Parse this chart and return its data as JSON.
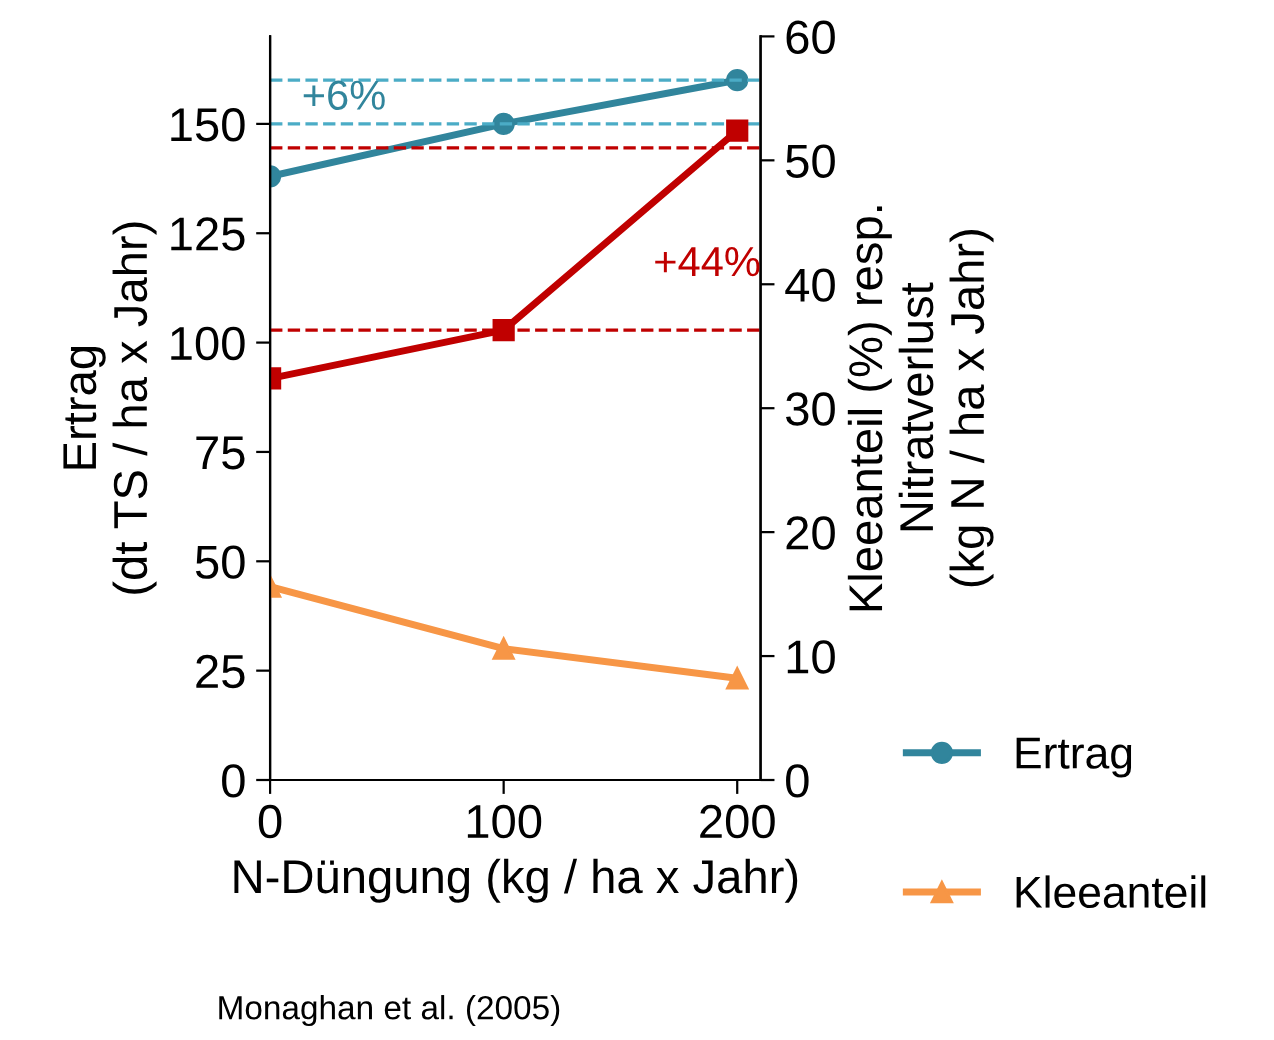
{
  "chart_data": {
    "type": "line",
    "xlabel": "N-Düngung (kg / ha x Jahr)",
    "ylabel": "Ertrag\n(dt TS / ha x Jahr)",
    "y2label": "Kleeanteil (%) resp.\nNitratverlust\n(kg N / ha x Jahr)",
    "x": [
      0,
      100,
      200
    ],
    "xlim": [
      0,
      210
    ],
    "xticks": [
      0,
      100,
      200
    ],
    "ylim": [
      0,
      170
    ],
    "yticks": [
      0,
      25,
      50,
      75,
      100,
      125,
      150
    ],
    "y2lim": [
      0,
      60
    ],
    "y2ticks": [
      0,
      10,
      20,
      30,
      40,
      50,
      60
    ],
    "series": [
      {
        "name": "Ertrag",
        "color": "#31859c",
        "values": [
          138,
          150,
          160
        ],
        "marker": "circle"
      },
      {
        "color": "#c00000",
        "values": [
          32.4,
          36.3,
          52.4
        ],
        "axis": "y2",
        "marker": "square"
      },
      {
        "name": "Kleeanteil",
        "color": "#f79646",
        "values": [
          15.6,
          10.6,
          8.2
        ],
        "axis": "y2",
        "marker": "triangle"
      }
    ],
    "ref_lines": [
      {
        "axis": "y",
        "value": 160,
        "color": "#4bacc6",
        "line_style": "dashed"
      },
      {
        "axis": "y",
        "value": 150,
        "color": "#4bacc6",
        "line_style": "dashed"
      },
      {
        "axis": "y2",
        "value": 51,
        "color": "#c00000",
        "line_style": "dashed"
      },
      {
        "axis": "y2",
        "value": 36.3,
        "color": "#c00000",
        "line_style": "dashed"
      }
    ],
    "annotations": [
      "+6%",
      "+44%",
      "Monaghan et al. (2005)"
    ],
    "legend": "bottom right",
    "grid": false
  }
}
